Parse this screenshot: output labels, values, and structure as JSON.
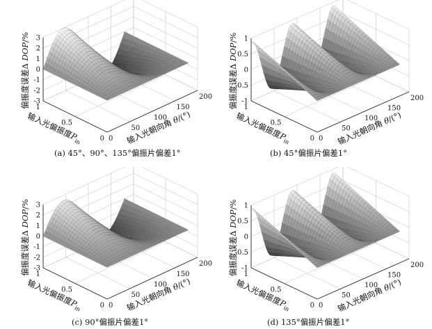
{
  "captions": {
    "a": "(a) 45°、90°、135°偏振片偏差1°",
    "b": "(b) 45°偏振片偏差1°",
    "c": "(c) 90°偏振片偏差1°",
    "d": "(d) 135°偏振片偏差1°"
  },
  "axis_titles": {
    "z_prefix": "偏振度误差",
    "z_delta": "Δ",
    "z_var": "DOP",
    "z_unit": "/%",
    "p_prefix": "输入光偏振度",
    "p_var": "P",
    "p_sub": "in",
    "t_prefix": "输入光朝向角",
    "t_var": "θ",
    "t_unit": "/(°)"
  },
  "chart_data": [
    {
      "type": "surface",
      "panel": "a",
      "x_param": "theta",
      "xlim": [
        0,
        200
      ],
      "xticks": [
        "0",
        "50",
        "100",
        "150",
        "200"
      ],
      "y_param": "P_in",
      "ylim": [
        0,
        1
      ],
      "yticks": [
        "0",
        "0.5",
        "1"
      ],
      "zlim": [
        -3,
        3
      ],
      "zticks": [
        "-3",
        "-2",
        "-1",
        "0",
        "1",
        "2",
        "3"
      ],
      "surface": {
        "kind": "sin2",
        "amplitude": 3.0,
        "phase": 0,
        "offset": 0
      },
      "grid": true
    },
    {
      "type": "surface",
      "panel": "b",
      "x_param": "theta",
      "xlim": [
        0,
        200
      ],
      "xticks": [
        "0",
        "50",
        "100",
        "150",
        "200"
      ],
      "y_param": "P_in",
      "ylim": [
        0,
        1
      ],
      "yticks": [
        "0",
        "0.5",
        "1"
      ],
      "zlim": [
        -1,
        1
      ],
      "zticks": [
        "-1",
        "-0.5",
        "0",
        "0.5",
        "1"
      ],
      "surface": {
        "kind": "cos4",
        "amplitude": 0.9,
        "phase": 0,
        "offset": 0
      },
      "grid": true
    },
    {
      "type": "surface",
      "panel": "c",
      "x_param": "theta",
      "xlim": [
        0,
        200
      ],
      "xticks": [
        "0",
        "50",
        "100",
        "150",
        "200"
      ],
      "y_param": "P_in",
      "ylim": [
        0,
        1
      ],
      "yticks": [
        "0",
        "0.5",
        "1"
      ],
      "zlim": [
        -3,
        3
      ],
      "zticks": [
        "-3",
        "-2",
        "-1",
        "0",
        "1",
        "2",
        "3"
      ],
      "surface": {
        "kind": "sin2",
        "amplitude": 2.5,
        "phase": 0,
        "offset": 0
      },
      "grid": true
    },
    {
      "type": "surface",
      "panel": "d",
      "x_param": "theta",
      "xlim": [
        0,
        200
      ],
      "xticks": [
        "0",
        "50",
        "100",
        "150",
        "200"
      ],
      "y_param": "P_in",
      "ylim": [
        0,
        1
      ],
      "yticks": [
        "0",
        "0.5",
        "1"
      ],
      "zlim": [
        -1,
        1
      ],
      "zticks": [
        "-1",
        "-0.5",
        "0",
        "0.5",
        "1"
      ],
      "surface": {
        "kind": "cos4",
        "amplitude": 0.9,
        "phase": 0,
        "offset": 0
      },
      "grid": true
    }
  ]
}
